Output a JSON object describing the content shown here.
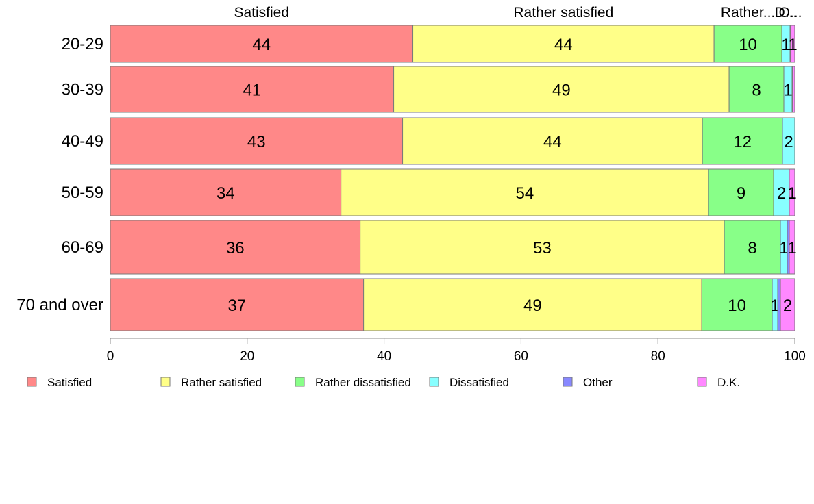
{
  "chart_data": {
    "type": "bar",
    "orientation": "horizontal",
    "stacked": true,
    "categories": [
      "20-29",
      "30-39",
      "40-49",
      "50-59",
      "60-69",
      "70 and over"
    ],
    "series": [
      {
        "name": "Satisfied",
        "top_label": "Satisfied",
        "color": "#ff8888",
        "values": [
          44.2,
          41.4,
          42.7,
          33.7,
          36.5,
          37.0
        ],
        "labels": [
          "44",
          "41",
          "43",
          "34",
          "36",
          "37"
        ]
      },
      {
        "name": "Rather satisfied",
        "top_label": "Rather satisfied",
        "color": "#ffff88",
        "values": [
          44.0,
          49.0,
          43.8,
          53.7,
          53.2,
          49.4
        ],
        "labels": [
          "44",
          "49",
          "44",
          "54",
          "53",
          "49"
        ]
      },
      {
        "name": "Rather dissatisfied",
        "top_label": "Rather...",
        "color": "#88ff88",
        "values": [
          9.9,
          8.0,
          11.7,
          9.5,
          8.2,
          10.3
        ],
        "labels": [
          "10",
          "8",
          "12",
          "9",
          "8",
          "10"
        ]
      },
      {
        "name": "Dissatisfied",
        "top_label": "D...",
        "color": "#88ffff",
        "values": [
          1.2,
          1.2,
          1.8,
          2.3,
          1.0,
          0.8
        ],
        "labels": [
          "1",
          "1",
          "2",
          "2",
          "1",
          "1"
        ]
      },
      {
        "name": "Other",
        "top_label": "O...",
        "color": "#8888ff",
        "values": [
          0.1,
          0.1,
          0.0,
          0.0,
          0.3,
          0.4
        ],
        "labels": [
          "",
          "",
          "",
          "",
          "",
          ""
        ]
      },
      {
        "name": "D.K.",
        "top_label": "",
        "color": "#ff88ff",
        "values": [
          0.6,
          0.3,
          0.0,
          0.8,
          0.8,
          2.1
        ],
        "labels": [
          "1",
          "",
          "",
          "1",
          "1",
          "2"
        ]
      }
    ],
    "xlim": [
      0,
      100
    ],
    "xticks": [
      "0",
      "20",
      "40",
      "60",
      "80",
      "100"
    ],
    "grid": false,
    "legend": "bottom"
  }
}
